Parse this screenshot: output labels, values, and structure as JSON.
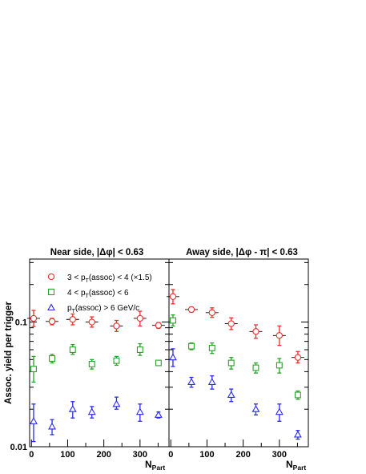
{
  "figure": {
    "ylabel": "Assoc. yield per trigger",
    "xlabel_main": "N",
    "xlabel_sub": "Part"
  },
  "legend": {
    "entries": [
      {
        "marker": "circle",
        "color": "#e8302a",
        "text": "3 < p_T(assoc) < 4  (×1.5)"
      },
      {
        "marker": "square",
        "color": "#2aa12a",
        "text": "4 < p_T(assoc) < 6"
      },
      {
        "marker": "triangle",
        "color": "#2a2ae8",
        "text": "p_T(assoc) > 6 GeV/c"
      }
    ]
  },
  "chart_data": [
    {
      "type": "scatter",
      "title": "Near side, |Δφ| < 0.63",
      "xlabel": "N_Part",
      "ylabel": "Assoc. yield per trigger",
      "xlim": [
        -5,
        380
      ],
      "ylim": [
        0.01,
        0.32
      ],
      "yscale": "log",
      "xticks": [
        0,
        100,
        200,
        300
      ],
      "yticks_labeled": [
        0.01,
        0.1
      ],
      "x": [
        6,
        57,
        114,
        167,
        235,
        300,
        351
      ],
      "series": [
        {
          "name": "3 < p_T(assoc) < 4  (×1.5)",
          "marker": "circle",
          "color": "#e8302a",
          "values": [
            0.107,
            0.101,
            0.105,
            0.1,
            0.093,
            0.107,
            0.094
          ],
          "err_low": [
            0.015,
            0.006,
            0.01,
            0.009,
            0.009,
            0.014,
            0.005
          ],
          "err_high": [
            0.017,
            0.006,
            0.011,
            0.01,
            0.01,
            0.015,
            0.005
          ],
          "sys": true
        },
        {
          "name": "4 < p_T(assoc) < 6",
          "marker": "square",
          "color": "#2aa12a",
          "values": [
            0.042,
            0.051,
            0.06,
            0.046,
            0.049,
            0.06,
            0.047
          ],
          "err_low": [
            0.009,
            0.004,
            0.005,
            0.004,
            0.004,
            0.006,
            0.002
          ],
          "err_high": [
            0.011,
            0.004,
            0.006,
            0.004,
            0.004,
            0.007,
            0.002
          ],
          "sys": false
        },
        {
          "name": "p_T(assoc) > 6 GeV/c",
          "marker": "triangle",
          "color": "#2a2ae8",
          "values": [
            0.016,
            0.0145,
            0.02,
            0.019,
            0.022,
            0.019,
            0.018
          ],
          "err_low": [
            0.005,
            0.002,
            0.003,
            0.002,
            0.002,
            0.003,
            0.001
          ],
          "err_high": [
            0.006,
            0.002,
            0.003,
            0.002,
            0.003,
            0.003,
            0.001
          ],
          "sys": false
        }
      ]
    },
    {
      "type": "scatter",
      "title": "Away side, |Δφ - π| < 0.63",
      "xlabel": "N_Part",
      "ylabel": "",
      "xlim": [
        -5,
        380
      ],
      "ylim": [
        0.01,
        0.32
      ],
      "yscale": "log",
      "xticks": [
        0,
        100,
        200,
        300
      ],
      "x": [
        6,
        57,
        114,
        167,
        235,
        300,
        351
      ],
      "series": [
        {
          "name": "3 < p_T(assoc) < 4  (×1.5)",
          "marker": "circle",
          "color": "#e8302a",
          "values": [
            0.16,
            0.126,
            0.119,
            0.097,
            0.084,
            0.078,
            0.052
          ],
          "err_low": [
            0.02,
            0.006,
            0.01,
            0.01,
            0.01,
            0.013,
            0.005
          ],
          "err_high": [
            0.022,
            0.006,
            0.011,
            0.011,
            0.011,
            0.015,
            0.006
          ],
          "sys": true
        },
        {
          "name": "4 < p_T(assoc) < 6",
          "marker": "square",
          "color": "#2aa12a",
          "values": [
            0.103,
            0.064,
            0.062,
            0.047,
            0.043,
            0.045,
            0.026
          ],
          "err_low": [
            0.01,
            0.004,
            0.006,
            0.005,
            0.004,
            0.006,
            0.002
          ],
          "err_high": [
            0.011,
            0.004,
            0.006,
            0.005,
            0.004,
            0.006,
            0.002
          ],
          "sys": false
        },
        {
          "name": "p_T(assoc) > 6 GeV/c",
          "marker": "triangle",
          "color": "#2a2ae8",
          "values": [
            0.052,
            0.033,
            0.033,
            0.026,
            0.02,
            0.019,
            0.0125
          ],
          "err_low": [
            0.008,
            0.003,
            0.004,
            0.003,
            0.002,
            0.003,
            0.001
          ],
          "err_high": [
            0.009,
            0.003,
            0.004,
            0.003,
            0.002,
            0.003,
            0.001
          ],
          "sys": false
        }
      ]
    }
  ]
}
